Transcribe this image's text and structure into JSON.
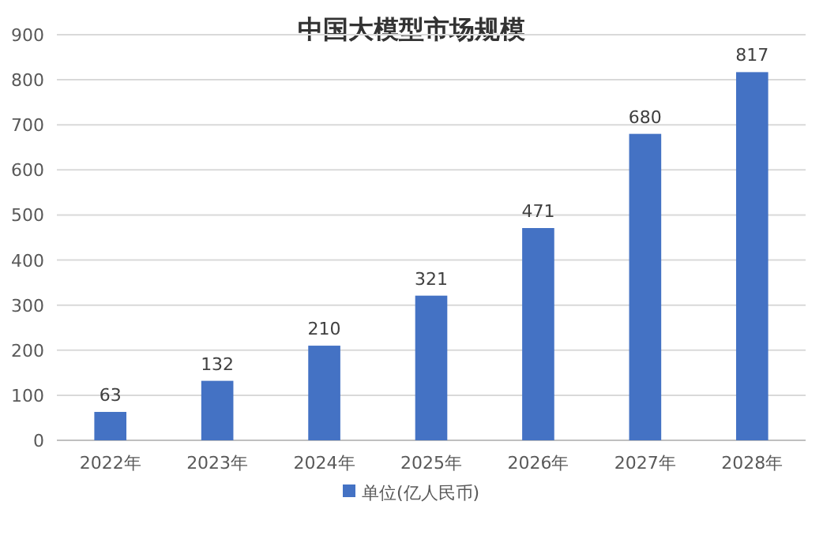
{
  "chart_data": {
    "type": "bar",
    "title": "中国大模型市场规模",
    "categories": [
      "2022年",
      "2023年",
      "2024年",
      "2025年",
      "2026年",
      "2027年",
      "2028年"
    ],
    "series": [
      {
        "name": "单位(亿人民币)",
        "color": "#4472c4",
        "values": [
          63,
          132,
          210,
          321,
          471,
          680,
          817
        ]
      }
    ],
    "ylim": [
      0,
      900
    ],
    "yticks": [
      0,
      100,
      200,
      300,
      400,
      500,
      600,
      700,
      800,
      900
    ],
    "grid": "y",
    "legend": "bottom",
    "data_labels": true
  }
}
